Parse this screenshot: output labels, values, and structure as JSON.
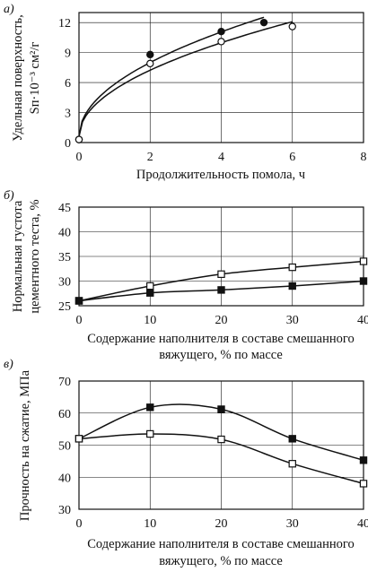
{
  "chart_data": [
    {
      "panel_label": "а)",
      "type": "line",
      "xlabel": "Продолжительность помола, ч",
      "ylabel_line1": "Удельная поверхность,",
      "ylabel_line2": "Sп·10⁻³ см²/г",
      "xlim": [
        0,
        8
      ],
      "ylim": [
        0,
        13
      ],
      "xticks": [
        "0",
        "2",
        "4",
        "6",
        "8"
      ],
      "yticks": [
        "0",
        "3",
        "6",
        "9",
        "12"
      ],
      "grid": true,
      "series": [
        {
          "marker": "filled-circle",
          "x": [
            0,
            2,
            4,
            5.2
          ],
          "y": [
            0.3,
            8.8,
            11.1,
            12.0
          ]
        },
        {
          "marker": "open-circle",
          "x": [
            0,
            2,
            4,
            6
          ],
          "y": [
            0.3,
            7.9,
            10.1,
            11.6
          ]
        }
      ]
    },
    {
      "panel_label": "б)",
      "type": "line",
      "xlabel_line1": "Содержание наполнителя в составе смешанного",
      "xlabel_line2": "вяжущего, % по массе",
      "ylabel_line1": "Нормальная густота",
      "ylabel_line2": "цементного теста, %",
      "xlim": [
        0,
        40
      ],
      "ylim": [
        25,
        45
      ],
      "xticks": [
        "0",
        "10",
        "20",
        "30",
        "40"
      ],
      "yticks": [
        "25",
        "30",
        "35",
        "40",
        "45"
      ],
      "grid": true,
      "series": [
        {
          "marker": "open-square",
          "x": [
            0,
            10,
            20,
            30,
            40
          ],
          "y": [
            26,
            29.0,
            31.4,
            32.8,
            34.0
          ]
        },
        {
          "marker": "filled-square",
          "x": [
            0,
            10,
            20,
            30,
            40
          ],
          "y": [
            26,
            27.6,
            28.2,
            29.0,
            30.0
          ]
        }
      ]
    },
    {
      "panel_label": "в)",
      "type": "line",
      "xlabel_line1": "Содержание наполнителя в составе смешанного",
      "xlabel_line2": "вяжущего, % по массе",
      "ylabel": "Прочность на сжатие, МПа",
      "xlim": [
        0,
        40
      ],
      "ylim": [
        30,
        70
      ],
      "xticks": [
        "0",
        "10",
        "20",
        "30",
        "40"
      ],
      "yticks": [
        "30",
        "40",
        "50",
        "60",
        "70"
      ],
      "grid": true,
      "series": [
        {
          "marker": "filled-square",
          "x": [
            0,
            10,
            20,
            30,
            40
          ],
          "y": [
            52,
            61.8,
            61.2,
            52.0,
            45.3
          ]
        },
        {
          "marker": "open-square",
          "x": [
            0,
            10,
            20,
            30,
            40
          ],
          "y": [
            52,
            53.5,
            51.8,
            44.2,
            38.0
          ]
        }
      ]
    }
  ]
}
